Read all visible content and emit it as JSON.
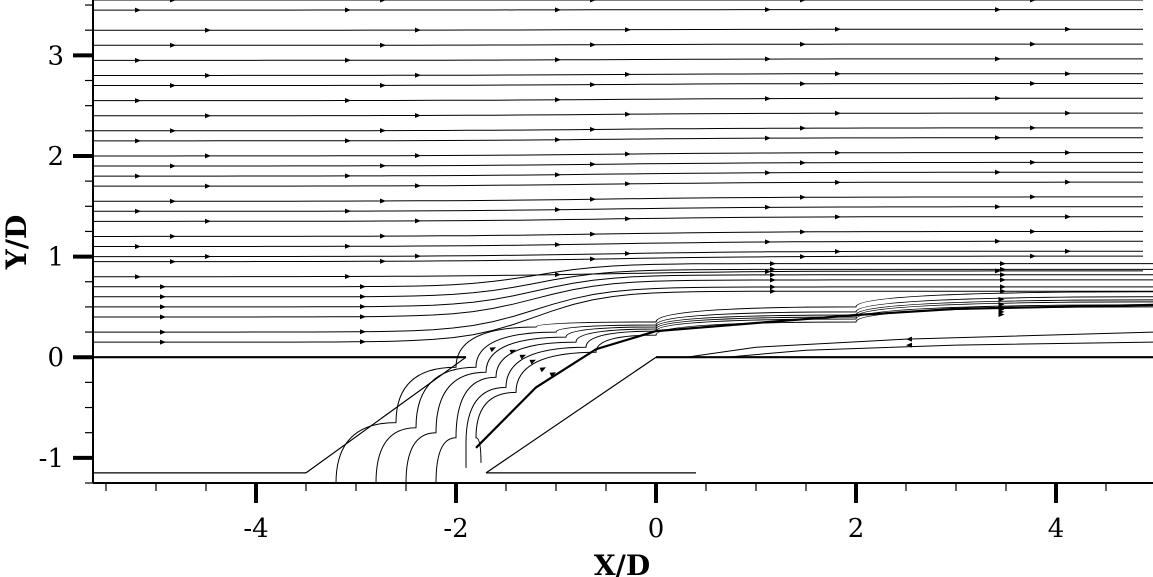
{
  "chart_data": {
    "type": "line",
    "title": "",
    "xlabel": "X/D",
    "ylabel": "Y/D",
    "xlim": [
      -5.63,
      4.97
    ],
    "ylim": [
      -1.25,
      3.55
    ],
    "x_major_ticks": [
      -4,
      -2,
      0,
      2,
      4
    ],
    "x_major_labels": [
      "-4",
      "-2",
      "0",
      "2",
      "4"
    ],
    "y_major_ticks": [
      -1,
      0,
      1,
      2,
      3
    ],
    "y_major_labels": [
      "-1",
      "0",
      "1",
      "2",
      "3"
    ],
    "x_minor_step": 0.5,
    "y_minor_step": 0.25,
    "grid": false,
    "legend": "none",
    "colors": {
      "line": "#000000",
      "background": "#ffffff"
    },
    "wall": {
      "upstream_surface": [
        [
          -5.63,
          0.0
        ],
        [
          -1.9,
          0.0
        ]
      ],
      "hole_upstream_edge": [
        [
          -1.9,
          0.0
        ],
        [
          -3.5,
          -1.15
        ]
      ],
      "plenum_floor_left": [
        [
          -5.63,
          -1.15
        ],
        [
          -3.5,
          -1.15
        ]
      ],
      "hole_downstream_edge": [
        [
          0.0,
          0.0
        ],
        [
          -1.7,
          -1.15
        ]
      ],
      "plenum_floor_right": [
        [
          -1.7,
          -1.15
        ],
        [
          0.4,
          -1.15
        ]
      ],
      "downstream_surface": [
        [
          0.0,
          0.0
        ],
        [
          4.97,
          0.0
        ]
      ]
    },
    "freestream_y0": [
      0.8,
      0.95,
      1.0,
      1.1,
      1.2,
      1.35,
      1.45,
      1.55,
      1.7,
      1.8,
      1.9,
      2.0,
      2.15,
      2.25,
      2.4,
      2.55,
      2.7,
      2.8,
      2.95,
      3.1,
      3.25,
      3.45,
      3.55
    ],
    "deflected_y0": [
      0.15,
      0.25,
      0.4,
      0.5,
      0.6,
      0.7
    ],
    "jet_streamlines": [
      [
        [
          -3.2,
          -1.25
        ],
        [
          -2.6,
          -0.65
        ],
        [
          -2.0,
          -0.1
        ],
        [
          -1.2,
          0.3
        ],
        [
          0.0,
          0.35
        ],
        [
          2.0,
          0.5
        ],
        [
          4.97,
          0.65
        ]
      ],
      [
        [
          -2.8,
          -1.25
        ],
        [
          -2.4,
          -0.7
        ],
        [
          -1.8,
          -0.1
        ],
        [
          -1.0,
          0.25
        ],
        [
          0.0,
          0.32
        ],
        [
          2.0,
          0.45
        ],
        [
          4.97,
          0.6
        ]
      ],
      [
        [
          -2.5,
          -1.25
        ],
        [
          -2.2,
          -0.75
        ],
        [
          -1.7,
          -0.15
        ],
        [
          -0.9,
          0.2
        ],
        [
          0.0,
          0.3
        ],
        [
          2.0,
          0.42
        ],
        [
          4.97,
          0.57
        ]
      ],
      [
        [
          -2.2,
          -1.25
        ],
        [
          -2.0,
          -0.8
        ],
        [
          -1.6,
          -0.2
        ],
        [
          -0.8,
          0.15
        ],
        [
          0.0,
          0.28
        ],
        [
          2.0,
          0.4
        ],
        [
          4.97,
          0.55
        ]
      ],
      [
        [
          -1.9,
          -1.1
        ],
        [
          -1.9,
          -0.85
        ],
        [
          -1.5,
          -0.3
        ],
        [
          -0.7,
          0.1
        ],
        [
          0.0,
          0.26
        ],
        [
          2.0,
          0.38
        ],
        [
          4.97,
          0.52
        ]
      ],
      [
        [
          -1.75,
          -1.05
        ],
        [
          -1.8,
          -0.8
        ],
        [
          -1.4,
          -0.35
        ],
        [
          -0.6,
          0.05
        ],
        [
          0.0,
          0.22
        ],
        [
          2.0,
          0.35
        ],
        [
          4.97,
          0.5
        ]
      ]
    ],
    "separation_bubble": [
      [
        [
          0.3,
          0.0
        ],
        [
          1.0,
          0.1
        ],
        [
          2.5,
          0.18
        ],
        [
          4.97,
          0.25
        ]
      ],
      [
        [
          0.7,
          0.0
        ],
        [
          1.5,
          0.07
        ],
        [
          3.0,
          0.12
        ],
        [
          4.97,
          0.15
        ]
      ]
    ]
  }
}
